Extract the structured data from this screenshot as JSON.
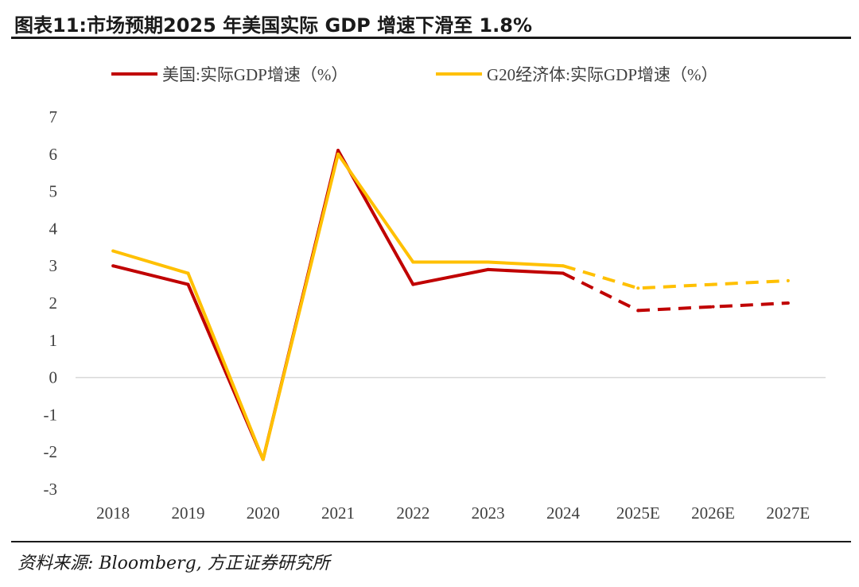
{
  "header": {
    "title": "图表11:市场预期2025 年美国实际 GDP 增速下滑至 1.8%"
  },
  "footer": {
    "source": "资料来源: Bloomberg, 方正证券研究所"
  },
  "chart_data": {
    "type": "line",
    "title": "图表11:市场预期2025 年美国实际 GDP 增速下滑至 1.8%",
    "xlabel": "",
    "ylabel": "",
    "categories": [
      "2018",
      "2019",
      "2020",
      "2021",
      "2022",
      "2023",
      "2024",
      "2025E",
      "2026E",
      "2027E"
    ],
    "ylim": [
      -3,
      7
    ],
    "yticks": [
      "-3",
      "-2",
      "-1",
      "0",
      "1",
      "2",
      "3",
      "4",
      "5",
      "6",
      "7"
    ],
    "forecast_start_index": 6,
    "legend_position": "top",
    "series": [
      {
        "name": "美国:实际GDP增速（%）",
        "color": "#C00000",
        "values": [
          3.0,
          2.5,
          -2.2,
          6.1,
          2.5,
          2.9,
          2.8,
          1.8,
          1.9,
          2.0
        ]
      },
      {
        "name": "G20经济体:实际GDP增速（%）",
        "color": "#FFC000",
        "values": [
          3.4,
          2.8,
          -2.2,
          6.0,
          3.1,
          3.1,
          3.0,
          2.4,
          2.5,
          2.6
        ]
      }
    ]
  }
}
